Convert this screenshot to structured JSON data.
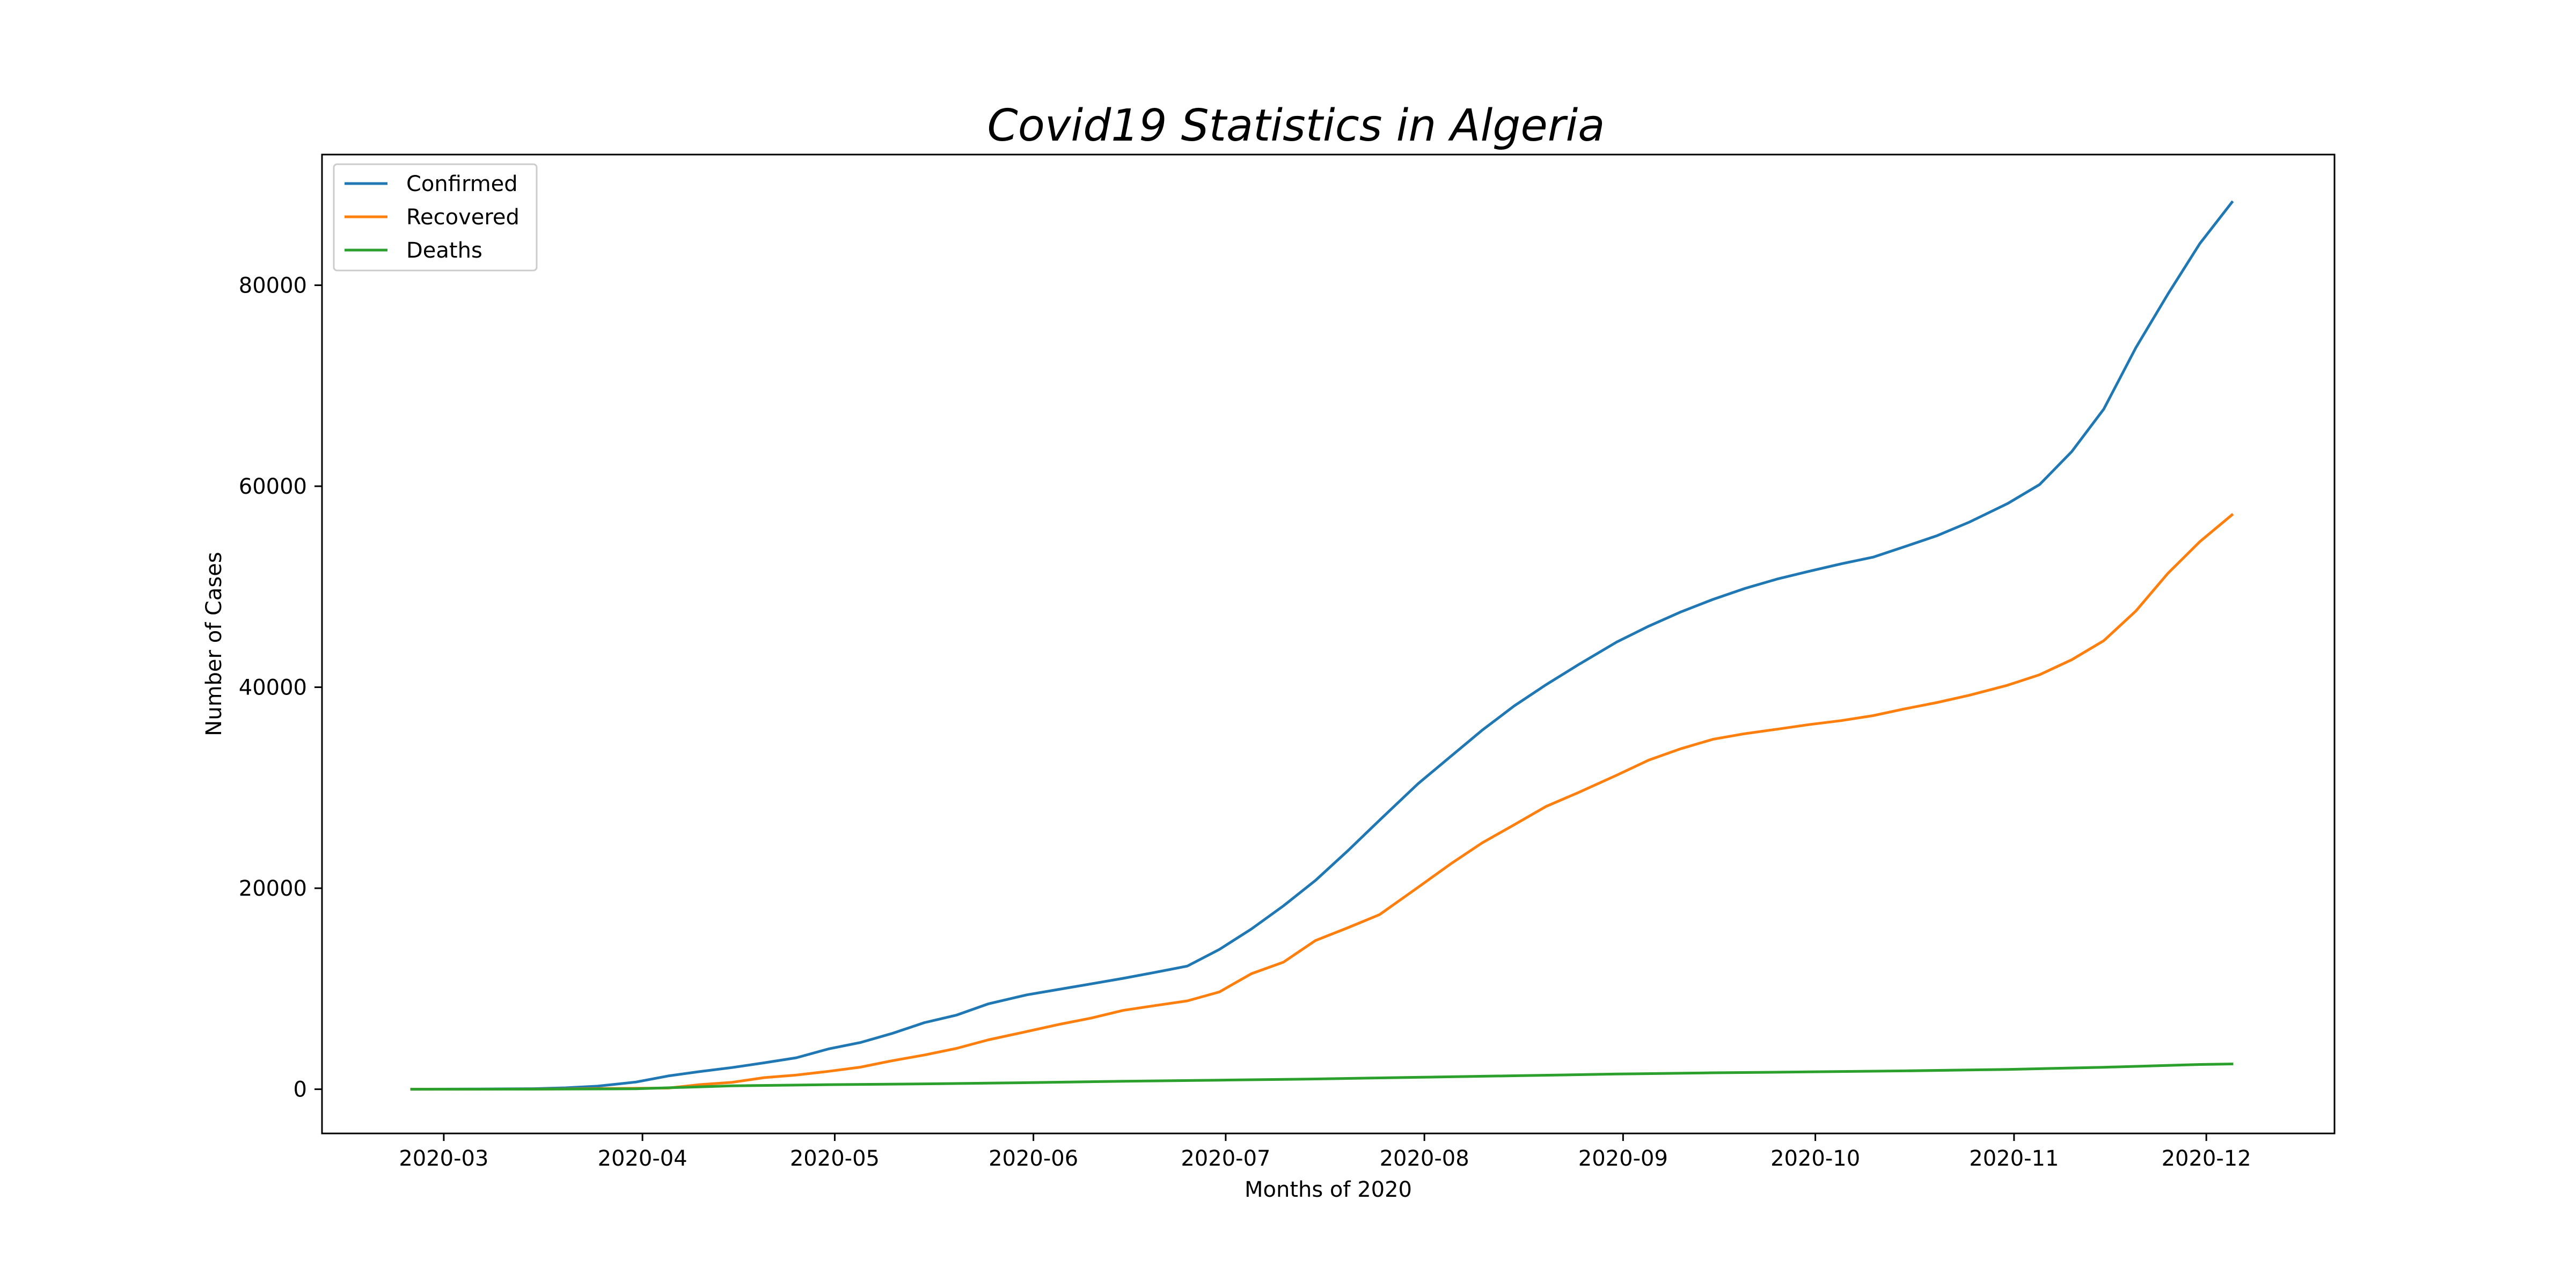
{
  "chart_data": {
    "type": "line",
    "title": "Covid19 Statistics in Algeria",
    "xlabel": "Months of 2020",
    "ylabel": "Number of Cases",
    "x_ticks": [
      "2020-03",
      "2020-04",
      "2020-05",
      "2020-06",
      "2020-07",
      "2020-08",
      "2020-09",
      "2020-10",
      "2020-11",
      "2020-12"
    ],
    "y_ticks": [
      0,
      20000,
      40000,
      60000,
      80000
    ],
    "xlim": [
      "2020-02-11",
      "2020-12-21"
    ],
    "ylim": [
      -4400,
      93000
    ],
    "grid": false,
    "legend": "top-left",
    "series": [
      {
        "name": "Confirmed",
        "color": "#1f77b4",
        "points": [
          [
            "2020-02-25",
            1
          ],
          [
            "2020-03-05",
            17
          ],
          [
            "2020-03-15",
            54
          ],
          [
            "2020-03-20",
            139
          ],
          [
            "2020-03-25",
            302
          ],
          [
            "2020-03-31",
            716
          ],
          [
            "2020-04-05",
            1320
          ],
          [
            "2020-04-10",
            1761
          ],
          [
            "2020-04-15",
            2160
          ],
          [
            "2020-04-20",
            2629
          ],
          [
            "2020-04-25",
            3127
          ],
          [
            "2020-04-30",
            4006
          ],
          [
            "2020-05-05",
            4648
          ],
          [
            "2020-05-10",
            5558
          ],
          [
            "2020-05-15",
            6629
          ],
          [
            "2020-05-20",
            7377
          ],
          [
            "2020-05-25",
            8503
          ],
          [
            "2020-05-31",
            9394
          ],
          [
            "2020-06-05",
            9935
          ],
          [
            "2020-06-10",
            10484
          ],
          [
            "2020-06-15",
            11031
          ],
          [
            "2020-06-20",
            11631
          ],
          [
            "2020-06-25",
            12248
          ],
          [
            "2020-06-30",
            13907
          ],
          [
            "2020-07-05",
            15941
          ],
          [
            "2020-07-10",
            18242
          ],
          [
            "2020-07-15",
            20770
          ],
          [
            "2020-07-20",
            23691
          ],
          [
            "2020-07-25",
            26764
          ],
          [
            "2020-07-31",
            30394
          ],
          [
            "2020-08-05",
            33055
          ],
          [
            "2020-08-10",
            35712
          ],
          [
            "2020-08-15",
            38133
          ],
          [
            "2020-08-20",
            40258
          ],
          [
            "2020-08-25",
            42228
          ],
          [
            "2020-08-31",
            44494
          ],
          [
            "2020-09-05",
            46071
          ],
          [
            "2020-09-10",
            47488
          ],
          [
            "2020-09-15",
            48734
          ],
          [
            "2020-09-20",
            49826
          ],
          [
            "2020-09-25",
            50754
          ],
          [
            "2020-09-30",
            51530
          ],
          [
            "2020-10-05",
            52270
          ],
          [
            "2020-10-10",
            52940
          ],
          [
            "2020-10-15",
            53998
          ],
          [
            "2020-10-20",
            55081
          ],
          [
            "2020-10-25",
            56419
          ],
          [
            "2020-10-31",
            58272
          ],
          [
            "2020-11-05",
            60169
          ],
          [
            "2020-11-10",
            63446
          ],
          [
            "2020-11-15",
            67679
          ],
          [
            "2020-11-20",
            73774
          ],
          [
            "2020-11-25",
            79110
          ],
          [
            "2020-11-30",
            84152
          ],
          [
            "2020-12-05",
            88252
          ]
        ]
      },
      {
        "name": "Recovered",
        "color": "#ff7f0e",
        "points": [
          [
            "2020-02-25",
            0
          ],
          [
            "2020-03-05",
            0
          ],
          [
            "2020-03-15",
            12
          ],
          [
            "2020-03-20",
            32
          ],
          [
            "2020-03-25",
            65
          ],
          [
            "2020-03-31",
            90
          ],
          [
            "2020-04-05",
            113
          ],
          [
            "2020-04-10",
            460
          ],
          [
            "2020-04-15",
            691
          ],
          [
            "2020-04-20",
            1152
          ],
          [
            "2020-04-25",
            1408
          ],
          [
            "2020-04-30",
            1779
          ],
          [
            "2020-05-05",
            2197
          ],
          [
            "2020-05-10",
            2841
          ],
          [
            "2020-05-15",
            3409
          ],
          [
            "2020-05-20",
            4062
          ],
          [
            "2020-05-25",
            4918
          ],
          [
            "2020-05-31",
            5748
          ],
          [
            "2020-06-05",
            6453
          ],
          [
            "2020-06-10",
            7074
          ],
          [
            "2020-06-15",
            7842
          ],
          [
            "2020-06-20",
            8324
          ],
          [
            "2020-06-25",
            8792
          ],
          [
            "2020-06-30",
            9674
          ],
          [
            "2020-07-05",
            11492
          ],
          [
            "2020-07-10",
            12637
          ],
          [
            "2020-07-15",
            14792
          ],
          [
            "2020-07-20",
            16051
          ],
          [
            "2020-07-25",
            17369
          ],
          [
            "2020-07-31",
            20082
          ],
          [
            "2020-08-05",
            22375
          ],
          [
            "2020-08-10",
            24506
          ],
          [
            "2020-08-15",
            26308
          ],
          [
            "2020-08-20",
            28140
          ],
          [
            "2020-08-25",
            29514
          ],
          [
            "2020-08-31",
            31244
          ],
          [
            "2020-09-05",
            32745
          ],
          [
            "2020-09-10",
            33875
          ],
          [
            "2020-09-15",
            34818
          ],
          [
            "2020-09-20",
            35375
          ],
          [
            "2020-09-25",
            35822
          ],
          [
            "2020-09-30",
            36282
          ],
          [
            "2020-10-05",
            36672
          ],
          [
            "2020-10-10",
            37170
          ],
          [
            "2020-10-15",
            37856
          ],
          [
            "2020-10-20",
            38482
          ],
          [
            "2020-10-25",
            39194
          ],
          [
            "2020-10-31",
            40201
          ],
          [
            "2020-11-05",
            41244
          ],
          [
            "2020-11-10",
            42735
          ],
          [
            "2020-11-15",
            44633
          ],
          [
            "2020-11-20",
            47581
          ],
          [
            "2020-11-25",
            51329
          ],
          [
            "2020-11-30",
            54488
          ],
          [
            "2020-12-05",
            57146
          ]
        ]
      },
      {
        "name": "Deaths",
        "color": "#2ca02c",
        "points": [
          [
            "2020-02-25",
            0
          ],
          [
            "2020-03-15",
            4
          ],
          [
            "2020-03-31",
            44
          ],
          [
            "2020-04-15",
            336
          ],
          [
            "2020-04-30",
            453
          ],
          [
            "2020-05-15",
            536
          ],
          [
            "2020-05-31",
            653
          ],
          [
            "2020-06-15",
            788
          ],
          [
            "2020-06-30",
            905
          ],
          [
            "2020-07-15",
            1018
          ],
          [
            "2020-07-31",
            1186
          ],
          [
            "2020-08-15",
            1341
          ],
          [
            "2020-08-31",
            1510
          ],
          [
            "2020-09-15",
            1636
          ],
          [
            "2020-09-30",
            1726
          ],
          [
            "2020-10-15",
            1827
          ],
          [
            "2020-10-31",
            1973
          ],
          [
            "2020-11-15",
            2184
          ],
          [
            "2020-11-30",
            2464
          ],
          [
            "2020-12-05",
            2516
          ]
        ]
      }
    ]
  }
}
